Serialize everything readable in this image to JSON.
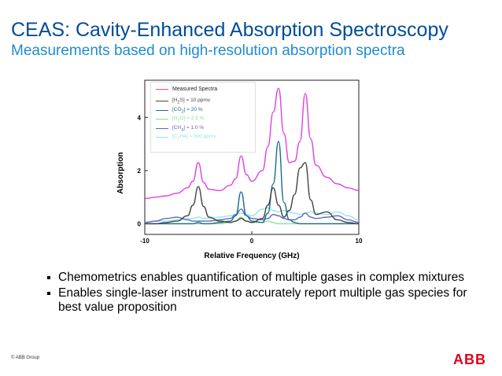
{
  "slide": {
    "title": "CEAS: Cavity-Enhanced Absorption Spectroscopy",
    "subtitle": "Measurements based on high-resolution absorption spectra",
    "bullets": [
      "Chemometrics enables quantification of multiple gases in complex mixtures",
      "Enables single-laser instrument to accurately report multiple gas species for best value proposition"
    ],
    "footer": "© ABB Group",
    "logo_text": "ABB",
    "colors": {
      "title": "#004c97",
      "subtitle": "#1e8ccf",
      "logo": "#e2001a"
    }
  },
  "chart_data": {
    "type": "line",
    "xlabel": "Relative Frequency (GHz)",
    "ylabel": "Absorption",
    "xlim": [
      -10,
      10
    ],
    "ylim": [
      -0.4,
      5.4
    ],
    "xticks": [
      -10,
      0,
      10
    ],
    "yticks": [
      0,
      2,
      4
    ],
    "grid": false,
    "legend_position": "top-left",
    "x": [
      -10,
      -9,
      -8,
      -7,
      -6,
      -5.5,
      -5,
      -4.5,
      -4,
      -3,
      -2,
      -1.5,
      -1,
      -0.5,
      0,
      1,
      1.5,
      2,
      2.5,
      3,
      3.5,
      4,
      4.5,
      5,
      5.5,
      6,
      7,
      8,
      9,
      10
    ],
    "series": [
      {
        "name": "Measured Spectra",
        "color": "#e040e0",
        "values": [
          0.95,
          1.0,
          1.05,
          1.15,
          1.35,
          1.6,
          2.3,
          1.55,
          1.3,
          1.25,
          1.45,
          1.7,
          2.55,
          1.85,
          1.6,
          2.0,
          2.9,
          4.2,
          5.1,
          3.4,
          2.3,
          2.35,
          3.1,
          4.9,
          3.2,
          2.2,
          1.75,
          1.5,
          1.35,
          1.25
        ]
      },
      {
        "name": "[H2S] = 10 ppmv",
        "color": "#444444",
        "values": [
          0,
          0,
          0.05,
          0.1,
          0.3,
          0.7,
          1.4,
          0.65,
          0.25,
          0.1,
          0.05,
          0.1,
          0.2,
          0.1,
          0.05,
          0.2,
          0.7,
          1.35,
          0.7,
          0.25,
          0.5,
          1.1,
          2.1,
          2.3,
          0.9,
          0.35,
          0.45,
          0.15,
          0.05,
          0.0
        ]
      },
      {
        "name": "[CO2] = 20 %",
        "color": "#1b6d8a",
        "values": [
          0,
          0,
          0,
          0,
          0,
          0,
          0.05,
          0,
          0,
          0.05,
          0.1,
          0.3,
          1.2,
          0.3,
          0.1,
          0.05,
          0.4,
          1.5,
          3.1,
          0.8,
          0.15,
          0.05,
          0,
          0,
          0,
          0,
          0,
          0,
          0,
          0
        ]
      },
      {
        "name": "[H2O] = 2.5 %",
        "color": "#90e090",
        "values": [
          0,
          0,
          0,
          0,
          0,
          0,
          0,
          0,
          0,
          0,
          0.05,
          0.1,
          0.25,
          0.1,
          0.05,
          0.05,
          0.1,
          0.05,
          0,
          0,
          0,
          0,
          0,
          0,
          0,
          0,
          0,
          0,
          0,
          0
        ]
      },
      {
        "name": "[CH4] = 1.0 %",
        "color": "#6060c8",
        "values": [
          0.05,
          0.1,
          0.2,
          0.25,
          0.15,
          0.1,
          0.1,
          0.1,
          0.1,
          0.15,
          0.2,
          0.35,
          0.55,
          0.3,
          0.2,
          0.15,
          0.2,
          0.35,
          0.3,
          0.2,
          0.15,
          0.15,
          0.25,
          0.4,
          0.25,
          0.2,
          0.25,
          0.3,
          0.15,
          0.05
        ]
      },
      {
        "name": "[C2H4] = 500 ppmv",
        "color": "#8ee8e8",
        "values": [
          0.05,
          0.1,
          0.1,
          0.15,
          0.2,
          0.2,
          0.25,
          0.2,
          0.2,
          0.25,
          0.3,
          0.35,
          0.4,
          0.35,
          0.3,
          0.55,
          0.6,
          0.5,
          0.45,
          0.5,
          0.45,
          0.4,
          0.35,
          0.4,
          0.45,
          0.4,
          0.35,
          0.45,
          0.3,
          0.15
        ]
      }
    ],
    "legend_labels": [
      {
        "prefix": "Measured Spectra",
        "sub": "",
        "suffix": ""
      },
      {
        "prefix": "[H",
        "sub": "2",
        "suffix": "S] = 10 ppmv"
      },
      {
        "prefix": "[CO",
        "sub": "2",
        "suffix": "] = 20 %"
      },
      {
        "prefix": "[H",
        "sub": "2",
        "suffix": "O] = 2.5 %"
      },
      {
        "prefix": "[CH",
        "sub": "4",
        "suffix": "] = 1.0 %"
      },
      {
        "prefix": "[C",
        "sub": "2",
        "suffix": "H4] = 500 ppmv"
      }
    ]
  }
}
